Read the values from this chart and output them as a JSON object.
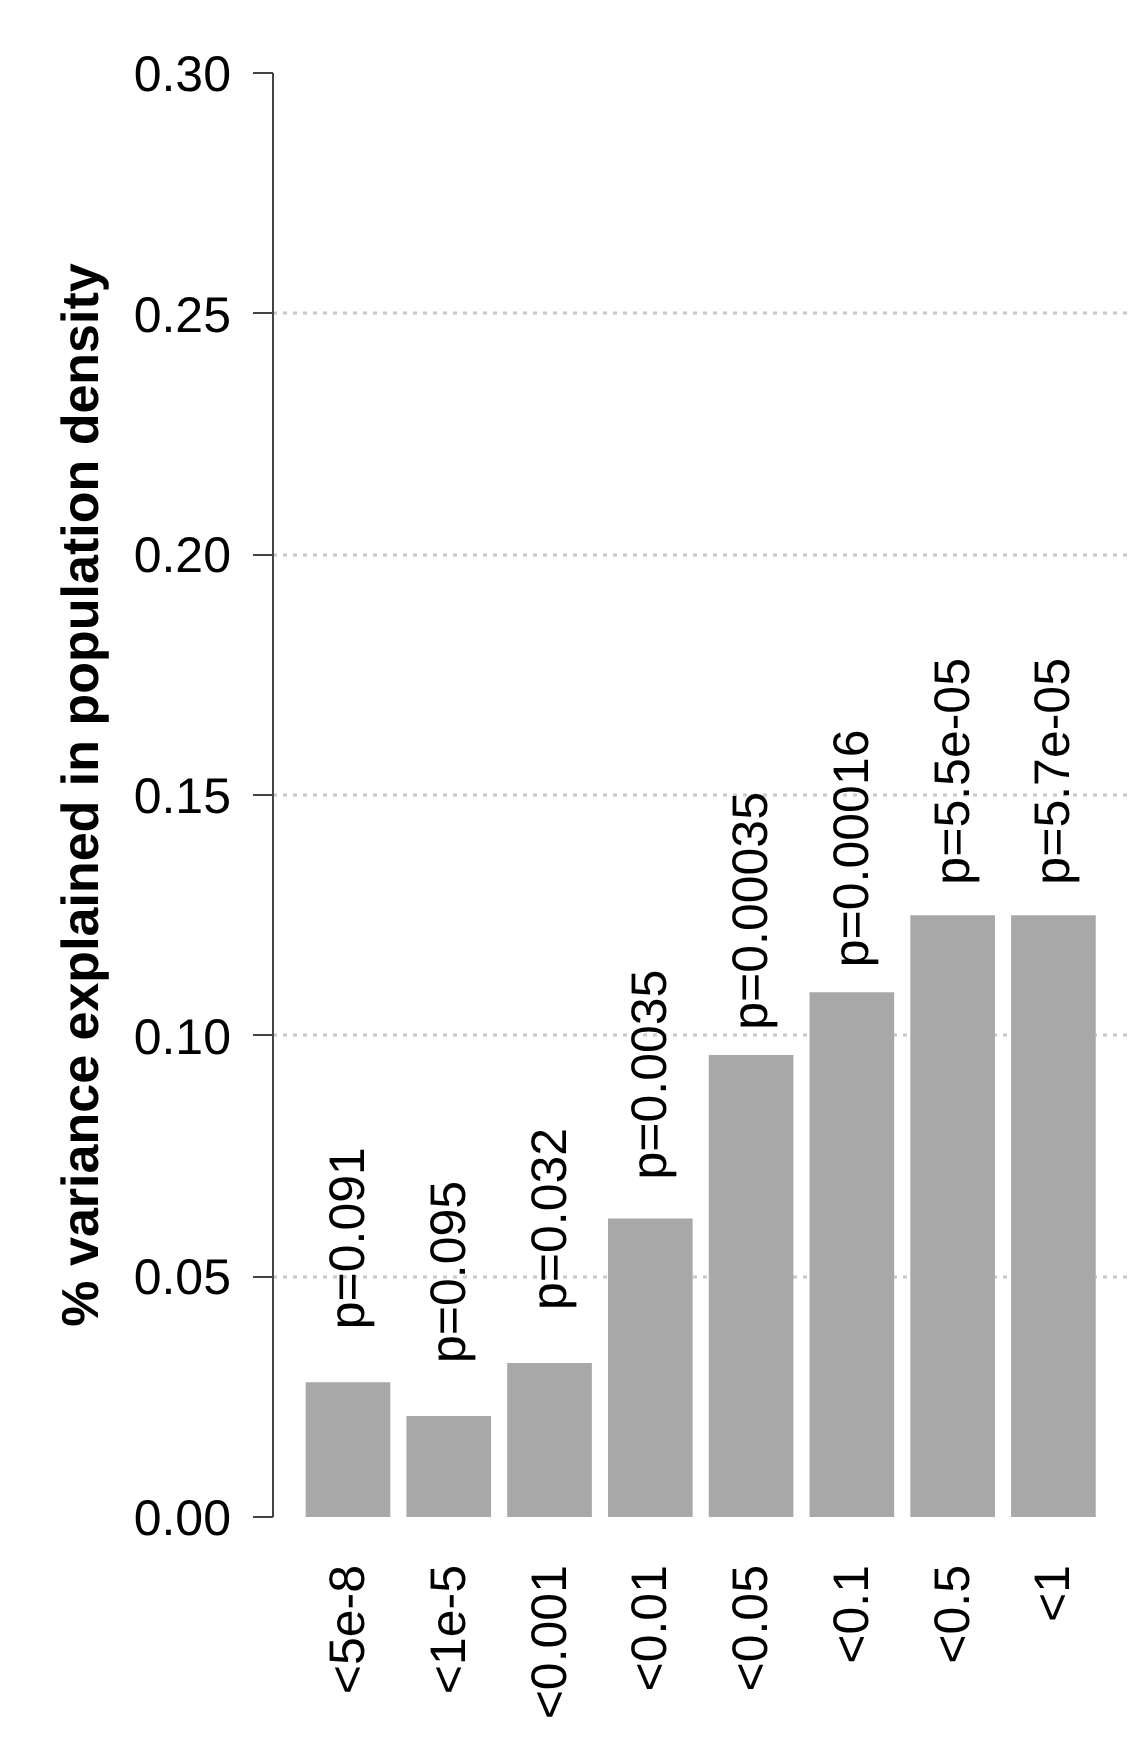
{
  "chart_data": {
    "type": "bar",
    "ylabel": "% variance explained in population density",
    "categories": [
      "<5e-8",
      "<1e-5",
      "<0.001",
      "<0.01",
      "<0.05",
      "<0.1",
      "<0.5",
      "<1"
    ],
    "values": [
      0.028,
      0.021,
      0.032,
      0.062,
      0.096,
      0.109,
      0.125,
      0.125
    ],
    "color": "#a8a8a8",
    "annotations": [
      {
        "text": "p=0.091",
        "x": "<5e-8",
        "y": 0.028
      },
      {
        "text": "p=0.095",
        "x": "<1e-5",
        "y": 0.021
      },
      {
        "text": "p=0.032",
        "x": "<0.001",
        "y": 0.032
      },
      {
        "text": "p=0.0035",
        "x": "<0.01",
        "y": 0.062
      },
      {
        "text": "p=0.00035",
        "x": "<0.05",
        "y": 0.096
      },
      {
        "text": "p=0.00016",
        "x": "<0.1",
        "y": 0.109
      },
      {
        "text": "p=5.5e-05",
        "x": "<0.5",
        "y": 0.125
      },
      {
        "text": "p=5.7e-05",
        "x": "<1",
        "y": 0.125
      }
    ],
    "ylim": [
      0,
      0.3
    ],
    "yticks": [
      {
        "value": 0,
        "label": "0.00"
      },
      {
        "value": 0.05,
        "label": "0.05"
      },
      {
        "value": 0.1,
        "label": "0.10"
      },
      {
        "value": 0.15,
        "label": "0.15"
      },
      {
        "value": 0.2,
        "label": "0.20"
      },
      {
        "value": 0.25,
        "label": "0.25"
      },
      {
        "value": 0.3,
        "label": "0.30"
      }
    ],
    "grid": "y"
  }
}
